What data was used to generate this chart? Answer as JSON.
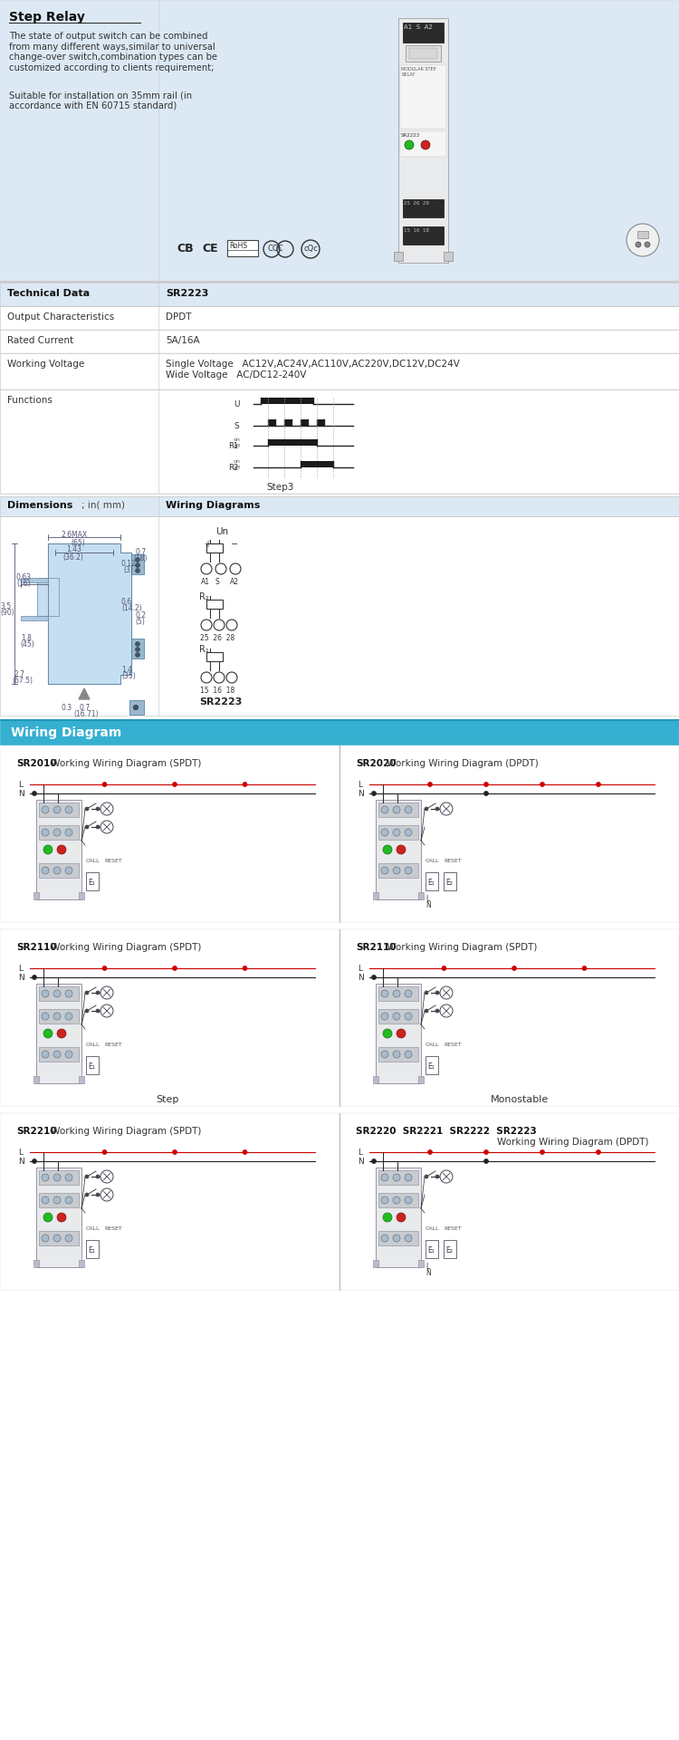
{
  "title": "Step Relay",
  "bg_color": "#ffffff",
  "light_blue": "#dce9f5",
  "section_blue": "#4db8d8",
  "border_color": "#cccccc",
  "text_color": "#222222",
  "intro_text": "The state of output switch can be combined\nfrom many different ways,similar to universal\nchange-over switch,combination types can be\ncustomized according to clients requirement;",
  "intro_text2": "Suitable for installation on 35mm rail (in\naccordance with EN 60715 standard)",
  "tech_data_label": "Technical Data",
  "tech_data_value": "SR2223",
  "rows": [
    [
      "Output Characteristics",
      "DPDT"
    ],
    [
      "Rated Current",
      "5A/16A"
    ],
    [
      "Working Voltage",
      "Single Voltage   AC12V,AC24V,AC110V,AC220V,DC12V,DC24V\nWide Voltage   AC/DC12-240V"
    ],
    [
      "Functions",
      ""
    ]
  ],
  "step3_label": "Step3",
  "sr2223_label": "SR2223",
  "wiring_diagram_label": "Wiring Diagram",
  "wiring_sections": [
    {
      "left_model": "SR2010",
      "left_title": " Working Wiring Diagram (SPDT)",
      "right_model": "SR2020",
      "right_title": " Working Wiring Diagram (DPDT)",
      "left_label": "",
      "right_label": "",
      "left_dual": false,
      "right_dual": true
    },
    {
      "left_model": "SR2110",
      "left_title": " Working Wiring Diagram (SPDT)",
      "right_model": "SR2110",
      "right_title": " Working Wiring Diagram (SPDT)",
      "left_label": "Step",
      "right_label": "Monostable",
      "left_dual": false,
      "right_dual": false
    },
    {
      "left_model": "SR2210",
      "left_title": " Working Wiring Diagram (SPDT)",
      "right_model": "SR2220  SR2221  SR2222  SR2223",
      "right_title": "\nWorking Wiring Diagram (DPDT)",
      "left_label": "",
      "right_label": "",
      "left_dual": false,
      "right_dual": true
    }
  ]
}
